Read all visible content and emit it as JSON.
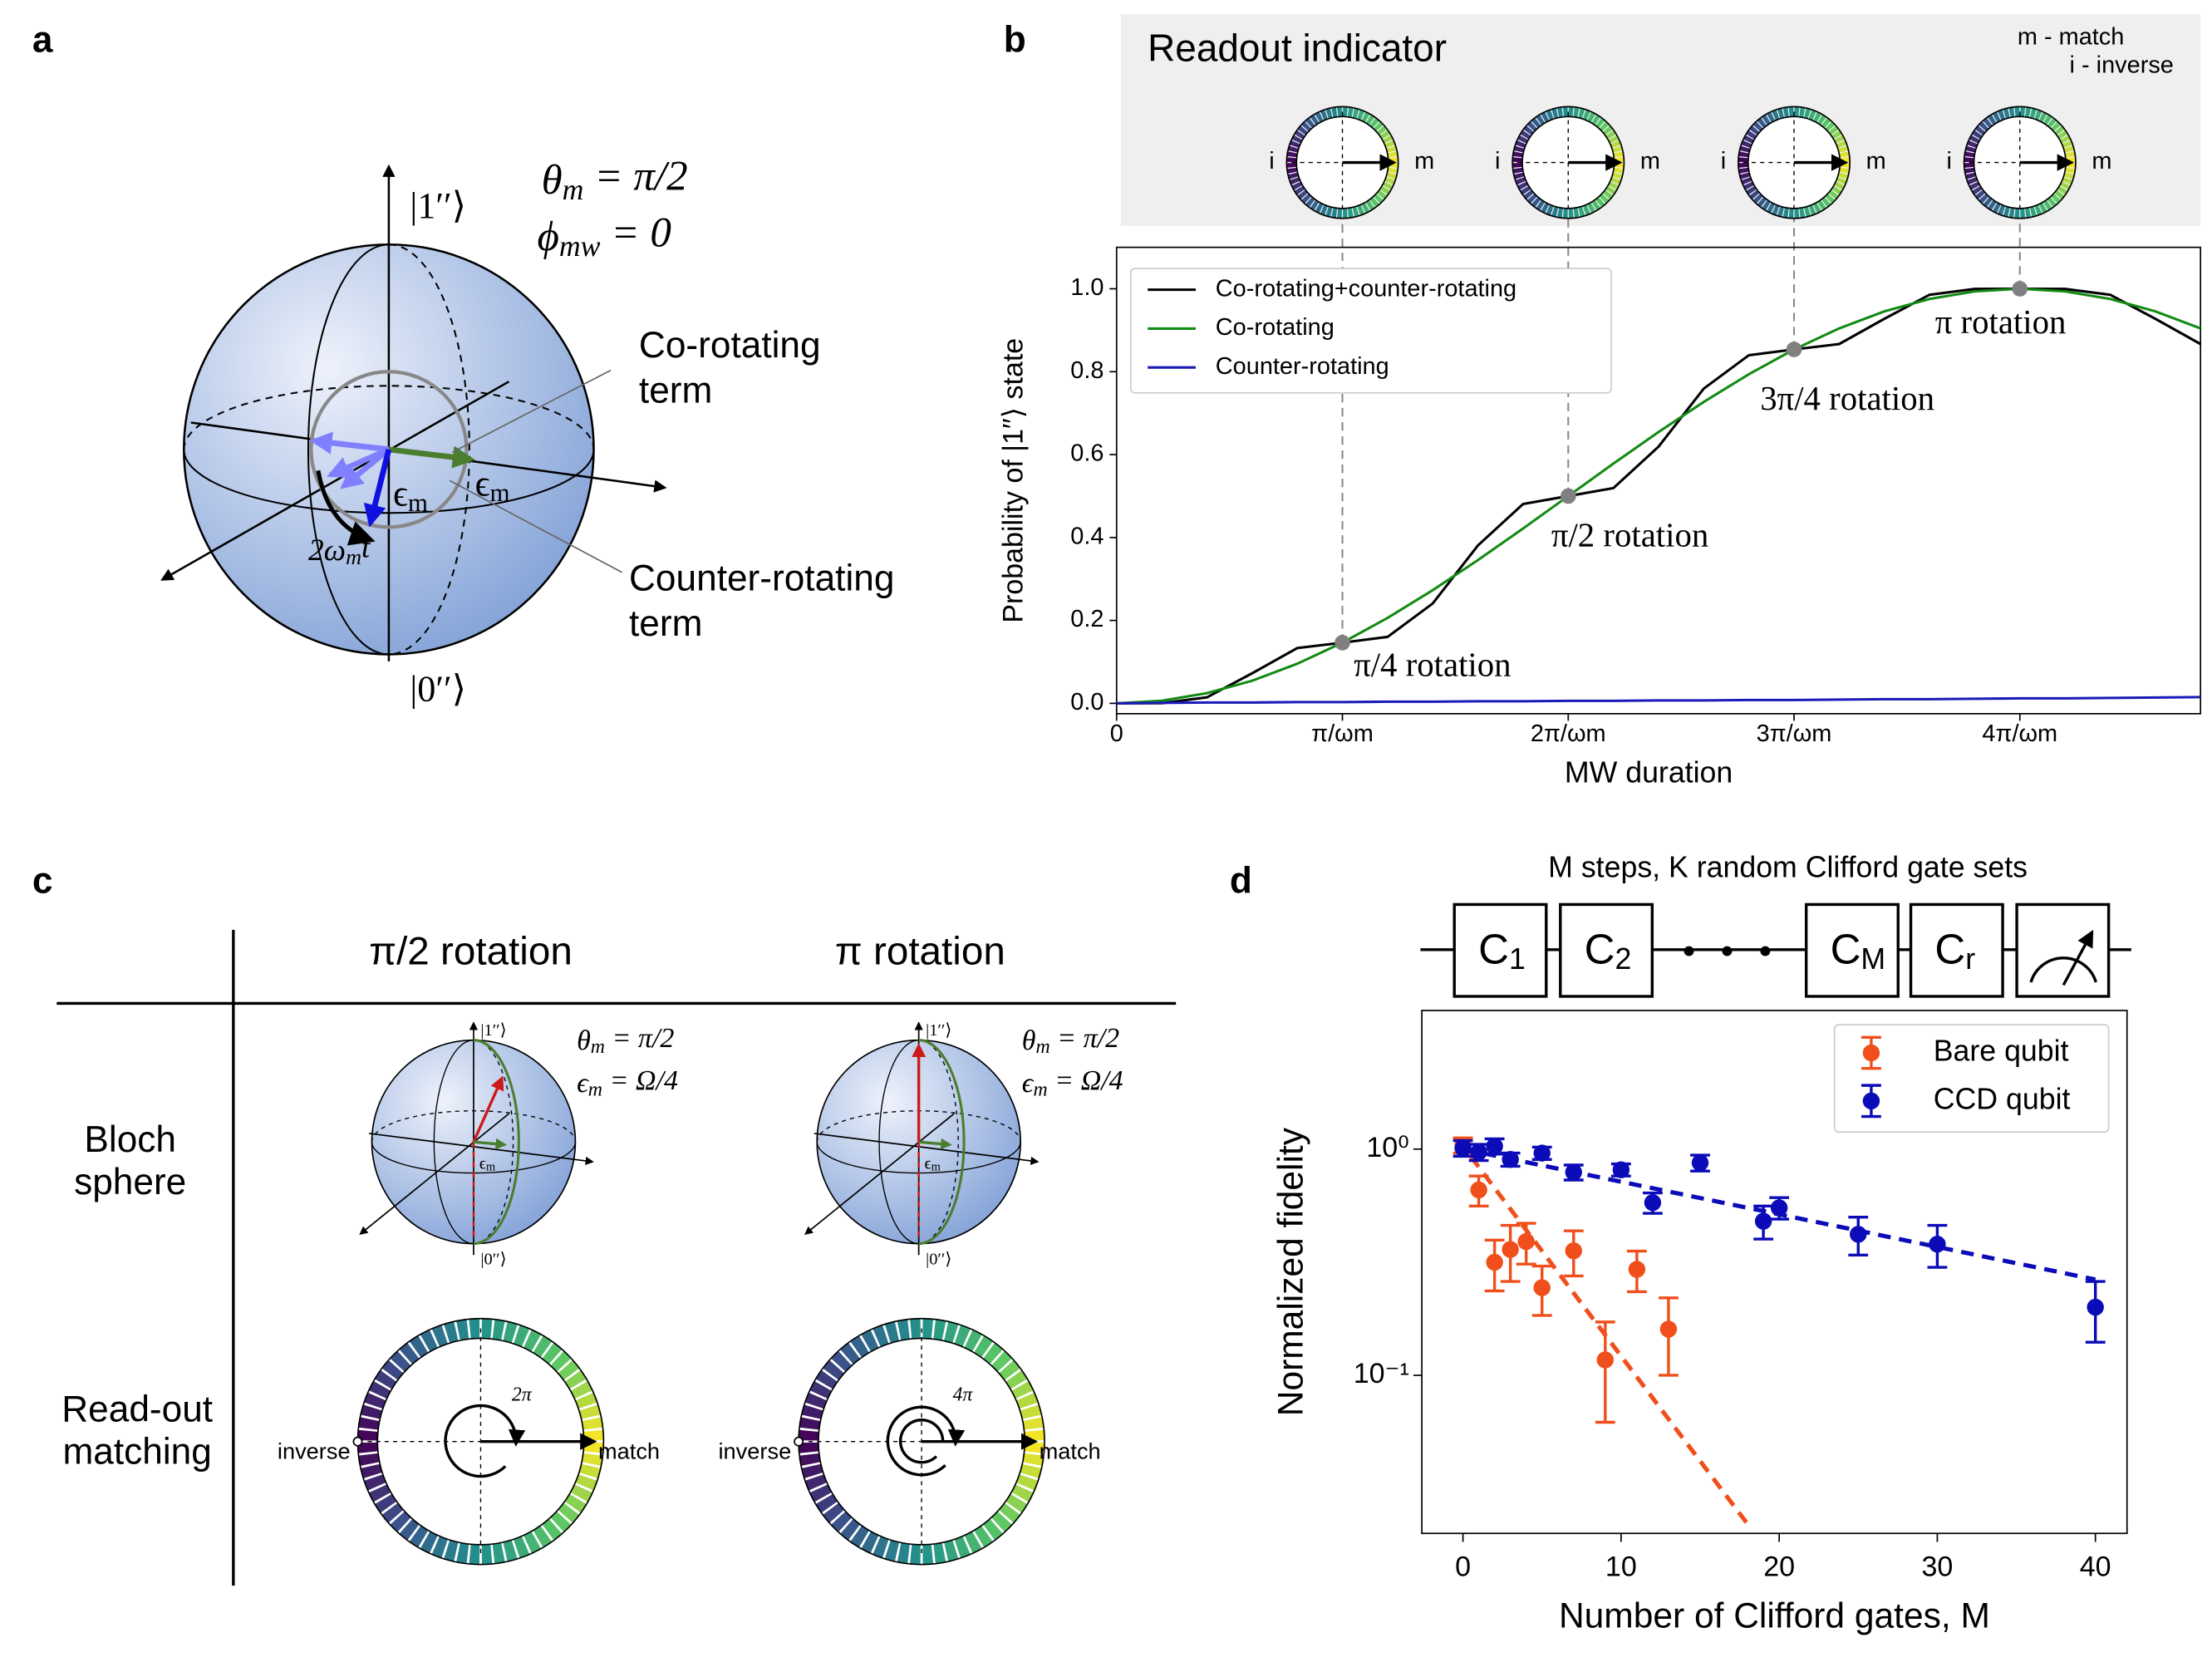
{
  "panels": [
    "a",
    "b",
    "c",
    "d"
  ],
  "panel_a": {
    "ket1": "|1′′⟩",
    "ket0": "|0′′⟩",
    "theta": [
      "θ",
      "m",
      " = π/2"
    ],
    "phi": [
      "ϕ",
      "mw",
      " = 0"
    ],
    "co_rotating": [
      "Co-rotating",
      "term"
    ],
    "counter_rotating": [
      "Counter-rotating",
      "term"
    ],
    "eps": [
      "ϵ",
      "m"
    ],
    "omega": [
      "2ω",
      "m",
      "t"
    ]
  },
  "panel_c": {
    "headers": [
      "π/2 rotation",
      "π rotation"
    ],
    "rows": [
      [
        "Bloch",
        "sphere"
      ],
      [
        "Read-out",
        "matching"
      ]
    ],
    "theta": [
      "θ",
      "m",
      " = π/2"
    ],
    "eps_eq": [
      "ϵ",
      "m",
      " = Ω/4"
    ],
    "ket1": "|1′′⟩",
    "ket0": "|0′′⟩",
    "eps": [
      "ϵ",
      "m"
    ],
    "turns": [
      "2π",
      "4π"
    ],
    "inverse": "inverse",
    "match": "match"
  },
  "chart_data": [
    {
      "type": "line",
      "readout": {
        "title": "Readout indicator",
        "notes": [
          "m - match",
          "i - inverse"
        ],
        "match": "m",
        "inverse": "i"
      },
      "x": [
        0,
        0.2,
        0.4,
        0.6,
        0.8,
        1,
        1.2,
        1.4,
        1.6,
        1.8,
        2,
        2.2,
        2.4,
        2.6,
        2.8,
        3,
        3.2,
        3.4,
        3.6,
        3.8,
        4,
        4.2,
        4.4,
        4.6,
        4.8
      ],
      "series": [
        {
          "name": "Co-rotating+counter-rotating",
          "color": "#000000",
          "values": [
            0,
            0.0004,
            0.0144,
            0.0724,
            0.1333,
            0.1464,
            0.1602,
            0.2409,
            0.3808,
            0.4808,
            0.5,
            0.5192,
            0.6192,
            0.7591,
            0.8398,
            0.8536,
            0.8667,
            0.9276,
            0.9856,
            0.9996,
            1,
            0.9996,
            0.9856,
            0.9276,
            0.8667
          ]
        },
        {
          "name": "Co-rotating",
          "color": "#138a13",
          "values": [
            0,
            0.0062,
            0.0245,
            0.0545,
            0.0955,
            0.1464,
            0.2061,
            0.273,
            0.3455,
            0.4218,
            0.5,
            0.5782,
            0.6545,
            0.727,
            0.7939,
            0.8536,
            0.9045,
            0.9455,
            0.9755,
            0.9938,
            1,
            0.9938,
            0.9755,
            0.9455,
            0.9045
          ]
        },
        {
          "name": "Counter-rotating",
          "color": "#1a1ab8",
          "values": [
            0,
            0.001,
            0.002,
            0.002,
            0.003,
            0.003,
            0.004,
            0.004,
            0.005,
            0.005,
            0.006,
            0.006,
            0.007,
            0.007,
            0.008,
            0.008,
            0.009,
            0.01,
            0.01,
            0.011,
            0.012,
            0.012,
            0.013,
            0.014,
            0.015
          ]
        }
      ],
      "annotations": [
        {
          "text": "π/4 rotation",
          "x": 1,
          "y": 0.1464
        },
        {
          "text": "π/2 rotation",
          "x": 2,
          "y": 0.5
        },
        {
          "text": "3π/4 rotation",
          "x": 3,
          "y": 0.8536
        },
        {
          "text": "π rotation",
          "x": 4,
          "y": 1
        }
      ],
      "marker_color": "#808080",
      "xlabel": "MW duration",
      "ylabel": "Probability of |1′′⟩ state",
      "xlim": [
        0,
        4.8
      ],
      "ylim": [
        -0.025,
        1.1
      ],
      "xticks": [
        0,
        {
          "value": 1,
          "label": "π/ωm"
        },
        {
          "value": 2,
          "label": "2π/ωm"
        },
        {
          "value": 3,
          "label": "3π/ωm"
        },
        {
          "value": 4,
          "label": "4π/ωm"
        }
      ],
      "yticks": [
        {
          "value": 0,
          "label": "0.0"
        },
        0.2,
        0.4,
        0.6,
        0.8,
        {
          "value": 1,
          "label": "1.0"
        }
      ],
      "legend": "upper left"
    },
    {
      "type": "scatter",
      "title": "M steps, K random Clifford gate sets",
      "gates": [
        [
          "C",
          "1"
        ],
        [
          "C",
          "2"
        ],
        [
          "C",
          "M"
        ],
        [
          "C",
          "r"
        ]
      ],
      "series": [
        {
          "name": "Bare qubit",
          "color": "#f04e1a",
          "x": [
            0,
            1,
            2,
            3,
            4,
            5,
            7,
            9,
            11,
            13
          ],
          "values": [
            1.04,
            0.66,
            0.316,
            0.36,
            0.39,
            0.244,
            0.355,
            0.117,
            0.294,
            0.16
          ],
          "errors": [
            0.08,
            0.1,
            0.08,
            0.1,
            0.08,
            0.06,
            0.08,
            0.055,
            0.06,
            0.06
          ]
        },
        {
          "name": "CCD qubit",
          "color": "#0b0bb8",
          "x": [
            0,
            1,
            2,
            3,
            5,
            7,
            10,
            12,
            15,
            19,
            20,
            25,
            30,
            40
          ],
          "values": [
            1.01,
            0.97,
            1.03,
            0.9,
            0.96,
            0.79,
            0.81,
            0.58,
            0.87,
            0.48,
            0.55,
            0.42,
            0.38,
            0.2
          ],
          "errors": [
            0.08,
            0.08,
            0.08,
            0.06,
            0.06,
            0.06,
            0.05,
            0.06,
            0.07,
            0.08,
            0.06,
            0.08,
            0.08,
            0.06
          ]
        }
      ],
      "fits": [
        {
          "color": "#f04e1a",
          "x": [
            -0.3,
            18
          ],
          "values": [
            1.1,
            0.022
          ]
        },
        {
          "color": "#0b0bb8",
          "x": [
            0,
            40
          ],
          "values": [
            1.0,
            0.265
          ]
        }
      ],
      "xlabel": "Number of Clifford gates, M",
      "ylabel": "Normalized fidelity",
      "xlim": [
        -2.6,
        42
      ],
      "ylim": [
        0.02,
        4.1
      ],
      "log_y": true,
      "xticks": [
        0,
        10,
        20,
        30,
        40
      ],
      "yticks": [
        {
          "value": 0.1,
          "label": "10⁻¹"
        },
        {
          "value": 1,
          "label": "10⁰"
        }
      ],
      "legend": "upper right"
    }
  ]
}
